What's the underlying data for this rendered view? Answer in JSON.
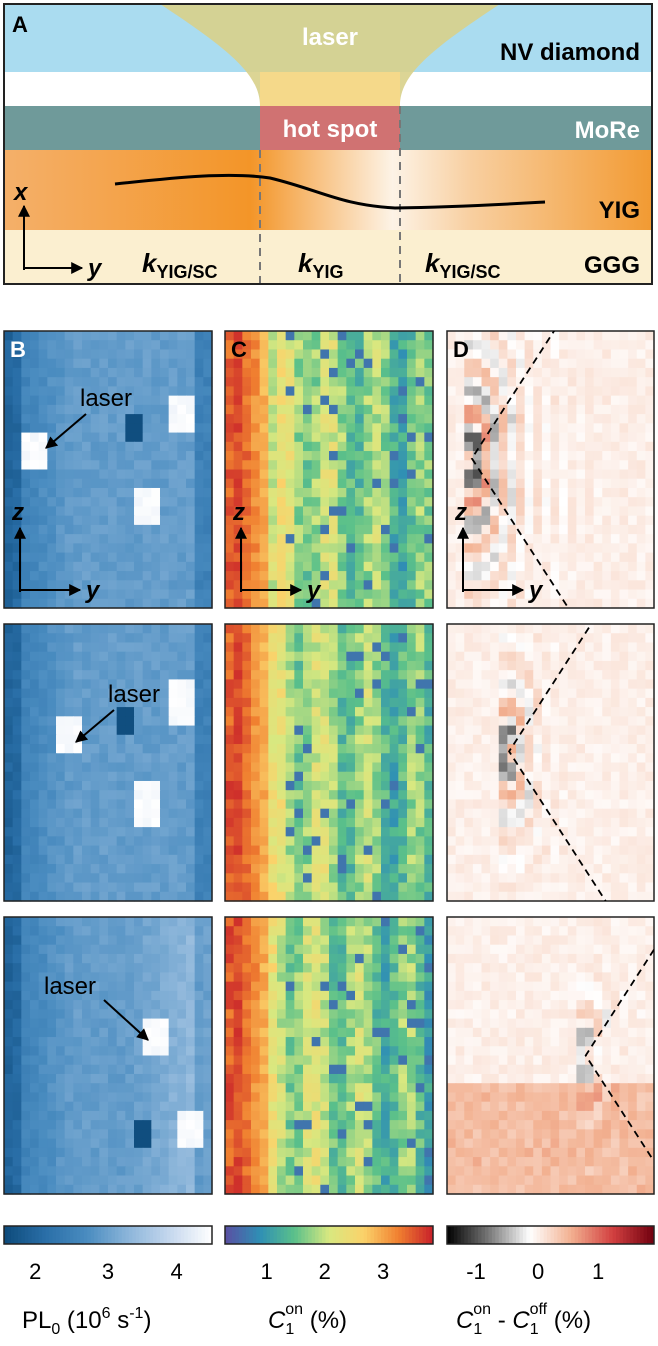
{
  "panel_a": {
    "letter": "A",
    "laser": "laser",
    "nv_diamond": "NV diamond",
    "hot_spot": "hot spot",
    "more": "MoRe",
    "yig": "YIG",
    "ggg": "GGG",
    "axis_x": "x",
    "axis_y": "y",
    "k_left": {
      "main": "k",
      "sub": "YIG/SC"
    },
    "k_mid": {
      "main": "k",
      "sub": "YIG"
    },
    "k_right": {
      "main": "k",
      "sub": "YIG/SC"
    },
    "colors": {
      "diamond": "#aadcf0",
      "laser": "#d8d08a",
      "more": "#6f9a9a",
      "hot_spot": "#d07272",
      "yig": "#f29a32",
      "ggg": "#fbefd0"
    }
  },
  "panel_letters": {
    "b": "B",
    "c": "C",
    "d": "D"
  },
  "laser_label": "laser",
  "axes_labels": {
    "z": "z",
    "y": "y"
  },
  "colorbars": [
    {
      "name": "pl0",
      "colormap": [
        "#0d4a7a",
        "#2a6fa8",
        "#4a8cc0",
        "#8db6da",
        "#c6d8ee",
        "#ffffff"
      ],
      "ticks": [
        "2",
        "3",
        "4"
      ],
      "tick_positions": [
        0.15,
        0.5,
        0.83
      ],
      "label": {
        "main": "PL",
        "sub": "0",
        "rest1": " (10",
        "sup": "6",
        "rest2": " s",
        "sup2": "-1",
        "rest3": ")"
      }
    },
    {
      "name": "c1-on",
      "colormap": [
        "#5a4fa2",
        "#2f8fb5",
        "#5ac08a",
        "#d8e880",
        "#fbd26a",
        "#f08030",
        "#c8202a"
      ],
      "ticks": [
        "1",
        "2",
        "3"
      ],
      "tick_positions": [
        0.2,
        0.48,
        0.76
      ],
      "label": {
        "main": "C",
        "sub": "1",
        "sup": "on",
        "rest": " (%)"
      }
    },
    {
      "name": "c1-diff",
      "colormap": [
        "#000000",
        "#777777",
        "#ffffff",
        "#f2b090",
        "#d24040",
        "#70000f"
      ],
      "ticks": [
        "-1",
        "0",
        "1"
      ],
      "tick_positions": [
        0.14,
        0.44,
        0.73
      ],
      "label": {
        "main1": "C",
        "sub1": "1",
        "sup1": "on",
        "mid": " - ",
        "main2": "C",
        "sub2": "1",
        "sup2": "off",
        "rest": " (%)"
      }
    }
  ]
}
